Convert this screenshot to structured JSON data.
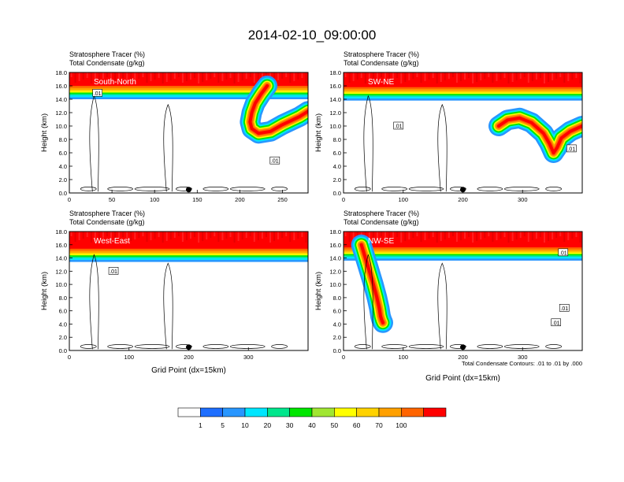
{
  "title": "2014-02-10_09:00:00",
  "colors": {
    "palette": [
      "#ffffff",
      "#1e6eff",
      "#2896ff",
      "#00e6ff",
      "#00e68c",
      "#00e600",
      "#a0e632",
      "#ffff00",
      "#ffd200",
      "#ffa000",
      "#ff6400",
      "#ff0000"
    ],
    "contour": "#000000",
    "frame": "#000000"
  },
  "colorbar": {
    "levels": [
      "1",
      "5",
      "10",
      "20",
      "30",
      "40",
      "50",
      "60",
      "70",
      "100"
    ]
  },
  "footnote": "Total Condensate Contours: .01 to .01 by .000",
  "marker_icon": "filled-circle",
  "chart_data": [
    {
      "type": "heatmap",
      "cross_section": "South-North",
      "line1": "Stratosphere Tracer   (%)",
      "line2": "Total Condensate   (g/kg)",
      "ylabel": "Height (km)",
      "xlabel": "",
      "xlim": [
        0,
        280
      ],
      "ylim": [
        0,
        18
      ],
      "xticks": [
        0,
        50,
        100,
        150,
        200,
        250
      ],
      "yticks": [
        "0.0",
        "2.0",
        "4.0",
        "6.0",
        "8.0",
        "10.0",
        "12.0",
        "14.0",
        "16.0",
        "18.0"
      ],
      "tropopause_km": 15.8,
      "contour_label": ".01",
      "contour_label_pos": [
        [
          33,
          14.9
        ],
        [
          241,
          4.8
        ]
      ],
      "marker_x": 140,
      "intrusions": [
        {
          "x": [
            232,
            225,
            218,
            214,
            212,
            214,
            222,
            236,
            250,
            270,
            280
          ],
          "z": [
            16.0,
            14.8,
            13.4,
            12.0,
            10.6,
            9.6,
            8.9,
            9.2,
            10.2,
            11.4,
            12.2
          ]
        }
      ]
    },
    {
      "type": "heatmap",
      "cross_section": "SW-NE",
      "line1": "Stratosphere Tracer   (%)",
      "line2": "Total Condensate   (g/kg)",
      "ylabel": "Height (km)",
      "xlabel": "",
      "xlim": [
        0,
        400
      ],
      "ylim": [
        0,
        18
      ],
      "xticks": [
        0,
        100,
        200,
        300
      ],
      "yticks": [
        "0.0",
        "2.0",
        "4.0",
        "6.0",
        "8.0",
        "10.0",
        "12.0",
        "14.0",
        "16.0",
        "18.0"
      ],
      "tropopause_km": 15.6,
      "contour_label": ".01",
      "contour_label_pos": [
        [
          92,
          10.0
        ],
        [
          382,
          6.6
        ]
      ],
      "marker_x": 200,
      "intrusions": [
        {
          "x": [
            260,
            275,
            295,
            315,
            335,
            345,
            352,
            358,
            365,
            380,
            400
          ],
          "z": [
            10.0,
            10.9,
            11.2,
            10.5,
            8.9,
            7.4,
            6.0,
            6.8,
            8.2,
            9.2,
            10.0
          ]
        }
      ]
    },
    {
      "type": "heatmap",
      "cross_section": "West-East",
      "line1": "Stratosphere Tracer   (%)",
      "line2": "Total Condensate   (g/kg)",
      "ylabel": "Height (km)",
      "xlabel": "Grid Point (dx=15km)",
      "xlim": [
        0,
        400
      ],
      "ylim": [
        0,
        18
      ],
      "xticks": [
        0,
        100,
        200,
        300
      ],
      "yticks": [
        "0.0",
        "2.0",
        "4.0",
        "6.0",
        "8.0",
        "10.0",
        "12.0",
        "14.0",
        "16.0",
        "18.0"
      ],
      "tropopause_km": 15.2,
      "contour_label": ".01",
      "contour_label_pos": [
        [
          74,
          12.0
        ]
      ],
      "marker_x": 200,
      "intrusions": []
    },
    {
      "type": "heatmap",
      "cross_section": "NW-SE",
      "line1": "Stratosphere Tracer   (%)",
      "line2": "Total Condensate   (g/kg)",
      "ylabel": "Height (km)",
      "xlabel": "Grid Point (dx=15km)",
      "xlim": [
        0,
        400
      ],
      "ylim": [
        0,
        18
      ],
      "xticks": [
        0,
        100,
        200,
        300
      ],
      "yticks": [
        "0.0",
        "2.0",
        "4.0",
        "6.0",
        "8.0",
        "10.0",
        "12.0",
        "14.0",
        "16.0",
        "18.0"
      ],
      "tropopause_km": 15.4,
      "contour_label": ".01",
      "contour_label_pos": [
        [
          368,
          14.8
        ],
        [
          370,
          6.4
        ],
        [
          356,
          4.2
        ]
      ],
      "marker_x": 200,
      "intrusions": [
        {
          "x": [
            30,
            40,
            50,
            56,
            60,
            62,
            64,
            66
          ],
          "z": [
            16.0,
            13.0,
            10.0,
            8.0,
            6.4,
            5.2,
            4.6,
            4.2
          ]
        }
      ]
    }
  ]
}
